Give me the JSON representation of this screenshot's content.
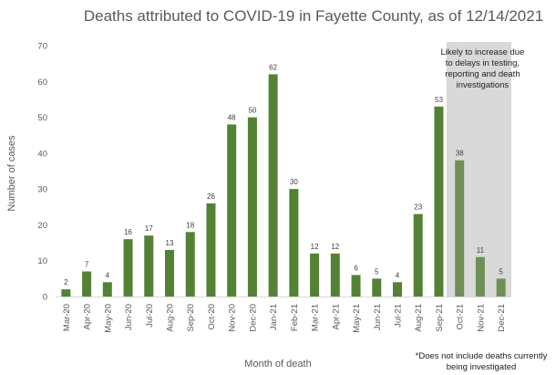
{
  "chart_data": {
    "type": "bar",
    "title": "Deaths attributed to COVID-19 in Fayette County, as of 12/14/2021",
    "xlabel": "Month of death",
    "ylabel": "Number of cases",
    "ylim": [
      0,
      70
    ],
    "yticks": [
      0,
      10,
      20,
      30,
      40,
      50,
      60,
      70
    ],
    "grid": false,
    "categories": [
      "Mar-20",
      "Apr-20",
      "May-20",
      "Jun-20",
      "Jul-20",
      "Aug-20",
      "Sep-20",
      "Oct-20",
      "Nov-20",
      "Dec-20",
      "Jan-21",
      "Feb-21",
      "Mar-21",
      "Apr-21",
      "May-21",
      "Jun-21",
      "Jul-21",
      "Aug-21",
      "Sep-21",
      "Oct-21",
      "Nov-21",
      "Dec-21"
    ],
    "values": [
      2,
      7,
      4,
      16,
      17,
      13,
      18,
      26,
      48,
      50,
      62,
      30,
      12,
      12,
      6,
      5,
      4,
      23,
      53,
      38,
      11,
      5
    ],
    "bar_color": "#548235",
    "shaded_bar_color": "#6f8f57",
    "shaded_region": {
      "categories": [
        "Oct-21",
        "Nov-21",
        "Dec-21"
      ],
      "color": "#d9d9d9",
      "note_lines": [
        "Likely to increase due",
        "to delays in testing,",
        "reporting and death",
        "investigations"
      ]
    },
    "footnote_lines": [
      "*Does not include deaths currently",
      "being investigated"
    ]
  }
}
